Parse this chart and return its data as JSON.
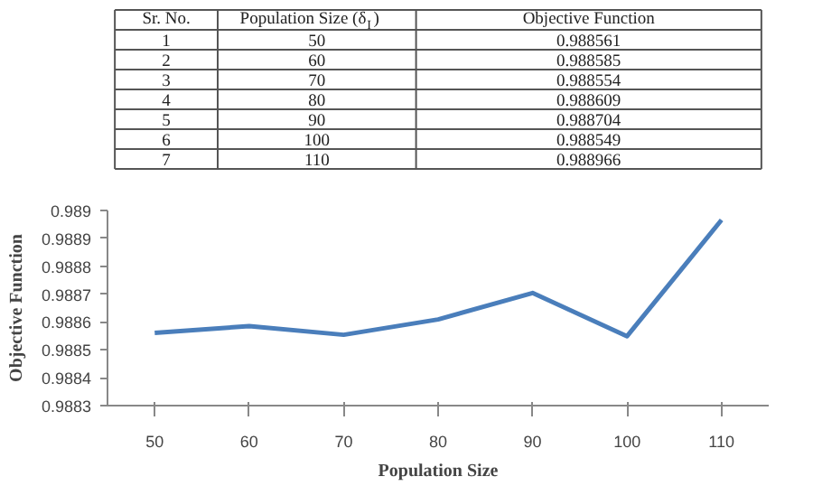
{
  "chart_data": {
    "type": "line",
    "xlabel": "Population Size",
    "ylabel": "Objective Function",
    "categories": [
      "50",
      "60",
      "70",
      "80",
      "90",
      "100",
      "110"
    ],
    "series": [
      {
        "color": "#4a7ebb",
        "values": [
          0.988561,
          0.988585,
          0.988554,
          0.988609,
          0.988704,
          0.988549,
          0.988966
        ]
      }
    ],
    "ylim": [
      0.9883,
      0.989
    ],
    "yticks": [
      0.9883,
      0.9884,
      0.9885,
      0.9886,
      0.9887,
      0.9888,
      0.9889,
      0.989
    ],
    "annotations": [
      "Sr. No.",
      "Population Size (δ$_{I}$)",
      "Objective Function",
      "1",
      "2",
      "3",
      "4",
      "5",
      "6",
      "7",
      "0.988561",
      "0.988585",
      "0.988554",
      "0.988609",
      "0.988704",
      "0.988549",
      "0.988966"
    ],
    "grid": false,
    "marker": "none",
    "line_style": "solid"
  }
}
